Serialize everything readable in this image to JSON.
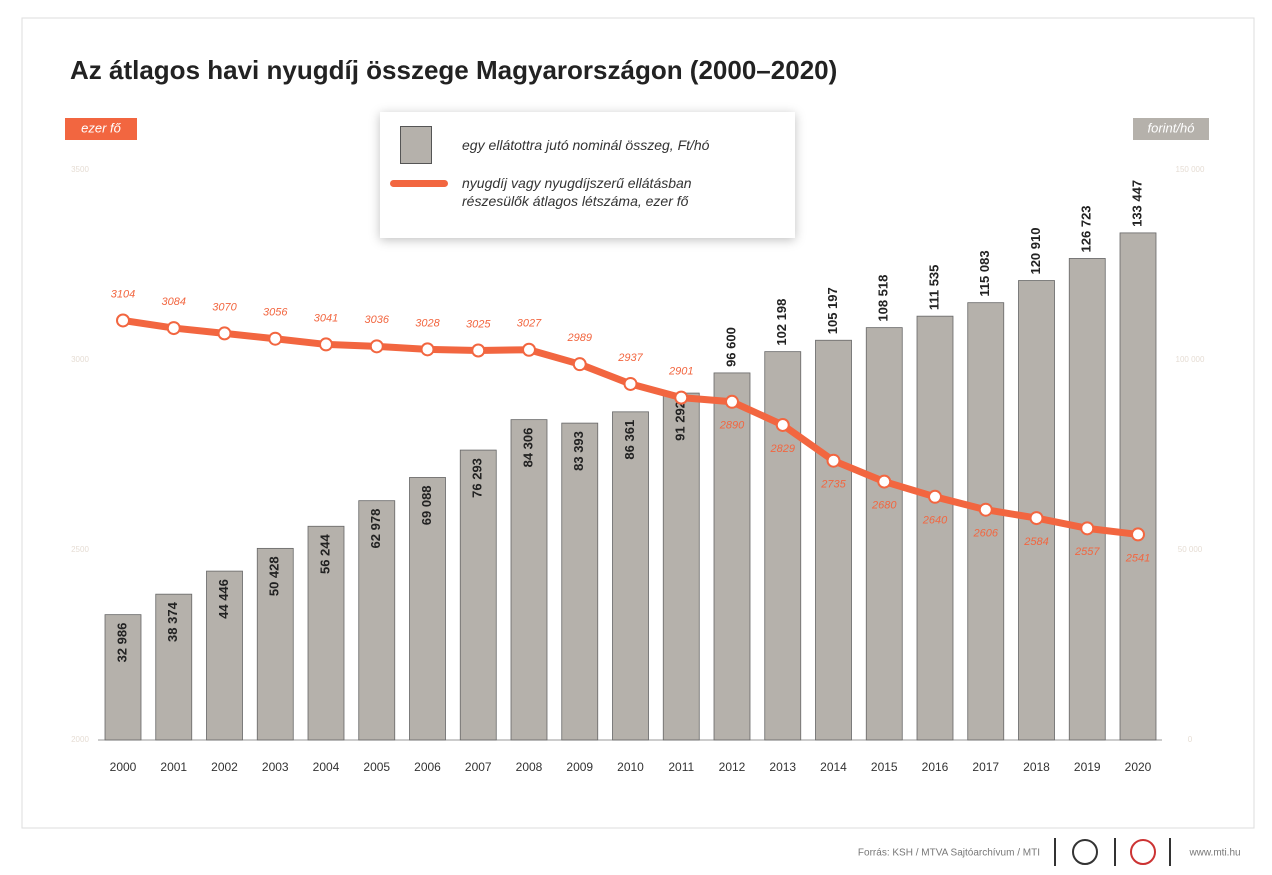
{
  "chart_data": {
    "type": "bar",
    "title": "Az átlagos havi nyugdíj összege Magyarországon (2000–2020)",
    "y_label": "ezer fő",
    "y2_label": "forint/hó",
    "categories": [
      "2000",
      "2001",
      "2002",
      "2003",
      "2004",
      "2005",
      "2006",
      "2007",
      "2008",
      "2009",
      "2010",
      "2011",
      "2012",
      "2013",
      "2014",
      "2015",
      "2016",
      "2017",
      "2018",
      "2019",
      "2020"
    ],
    "series": [
      {
        "name": "egy ellátottra jutó nominál összeg, Ft/hó",
        "type": "bar",
        "axis": "y2",
        "color": "#b5b1ab",
        "values": [
          32986,
          38374,
          44446,
          50428,
          56244,
          62978,
          69088,
          76293,
          84306,
          83393,
          86361,
          91292,
          96600,
          102198,
          105197,
          108518,
          111535,
          115083,
          120910,
          126723,
          133447
        ],
        "value_labels": [
          "32 986",
          "38 374",
          "44 446",
          "50 428",
          "56 244",
          "62 978",
          "69 088",
          "76 293",
          "84 306",
          "83 393",
          "86 361",
          "91 292",
          "96 600",
          "102 198",
          "105 197",
          "108 518",
          "111 535",
          "115 083",
          "120 910",
          "126 723",
          "133 447"
        ]
      },
      {
        "name": "nyugdíj vagy nyugdíjszerű ellátásban részesülők átlagos létszáma, ezer fő",
        "type": "line",
        "axis": "y",
        "color": "#f26640",
        "values": [
          3104,
          3084,
          3070,
          3056,
          3041,
          3036,
          3028,
          3025,
          3027,
          2989,
          2937,
          2901,
          2890,
          2829,
          2735,
          2680,
          2640,
          2606,
          2584,
          2557,
          2541
        ]
      }
    ],
    "ylim": [
      2000,
      3500
    ],
    "yticks": [
      2000,
      2500,
      3000,
      3500
    ],
    "y2lim": [
      0,
      150000
    ],
    "y2ticks": [
      {
        "value": 0,
        "label": "0"
      },
      {
        "value": 50000,
        "label": "50 000"
      },
      {
        "value": 100000,
        "label": "100 000"
      },
      {
        "value": 150000,
        "label": "150 000"
      }
    ],
    "source": "Forrás: KSH / MTVA Sajtóarchívum / MTI",
    "website": "www.mti.hu"
  }
}
